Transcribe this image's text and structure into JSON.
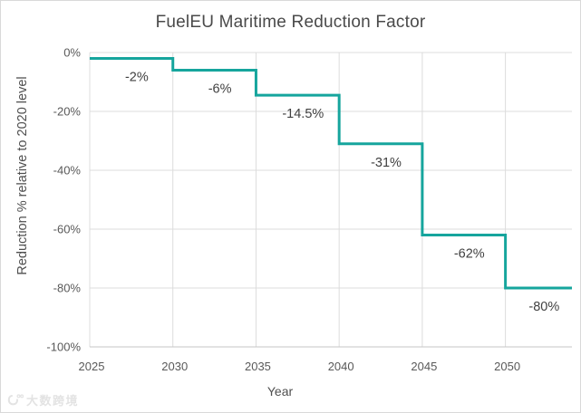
{
  "watermark": {
    "text": "大数跨境"
  },
  "chart_data": {
    "type": "line",
    "step_mode": "step-after",
    "title": "FuelEU Maritime Reduction Factor",
    "xlabel": "Year",
    "ylabel": "Reduction % relative to 2020 level",
    "xlim": [
      2025,
      2054
    ],
    "ylim": [
      -100,
      0
    ],
    "x_ticks": [
      2025,
      2030,
      2035,
      2040,
      2045,
      2050
    ],
    "x_tick_labels": [
      "2025",
      "2030",
      "2035",
      "2040",
      "2045",
      "2050"
    ],
    "y_ticks": [
      0,
      -20,
      -40,
      -60,
      -80,
      -100
    ],
    "y_tick_labels": [
      "0%",
      "-20%",
      "-40%",
      "-60%",
      "-80%",
      "-100%"
    ],
    "grid": true,
    "legend": false,
    "line_color": "#16A59D",
    "grid_color": "#DCDCDC",
    "axis_line_color": "#C6C6C6",
    "tick_color": "#595959",
    "data_label_color": "#404040",
    "series": [
      {
        "name": "FuelEU Maritime reduction factor",
        "steps": [
          {
            "x_start": 2025,
            "x_end": 2030,
            "y": -2,
            "label": "-2%"
          },
          {
            "x_start": 2030,
            "x_end": 2035,
            "y": -6,
            "label": "-6%"
          },
          {
            "x_start": 2035,
            "x_end": 2040,
            "y": -14.5,
            "label": "-14.5%"
          },
          {
            "x_start": 2040,
            "x_end": 2045,
            "y": -31,
            "label": "-31%"
          },
          {
            "x_start": 2045,
            "x_end": 2050,
            "y": -62,
            "label": "-62%"
          },
          {
            "x_start": 2050,
            "x_end": 2054,
            "y": -80,
            "label": "-80%"
          }
        ]
      }
    ]
  }
}
